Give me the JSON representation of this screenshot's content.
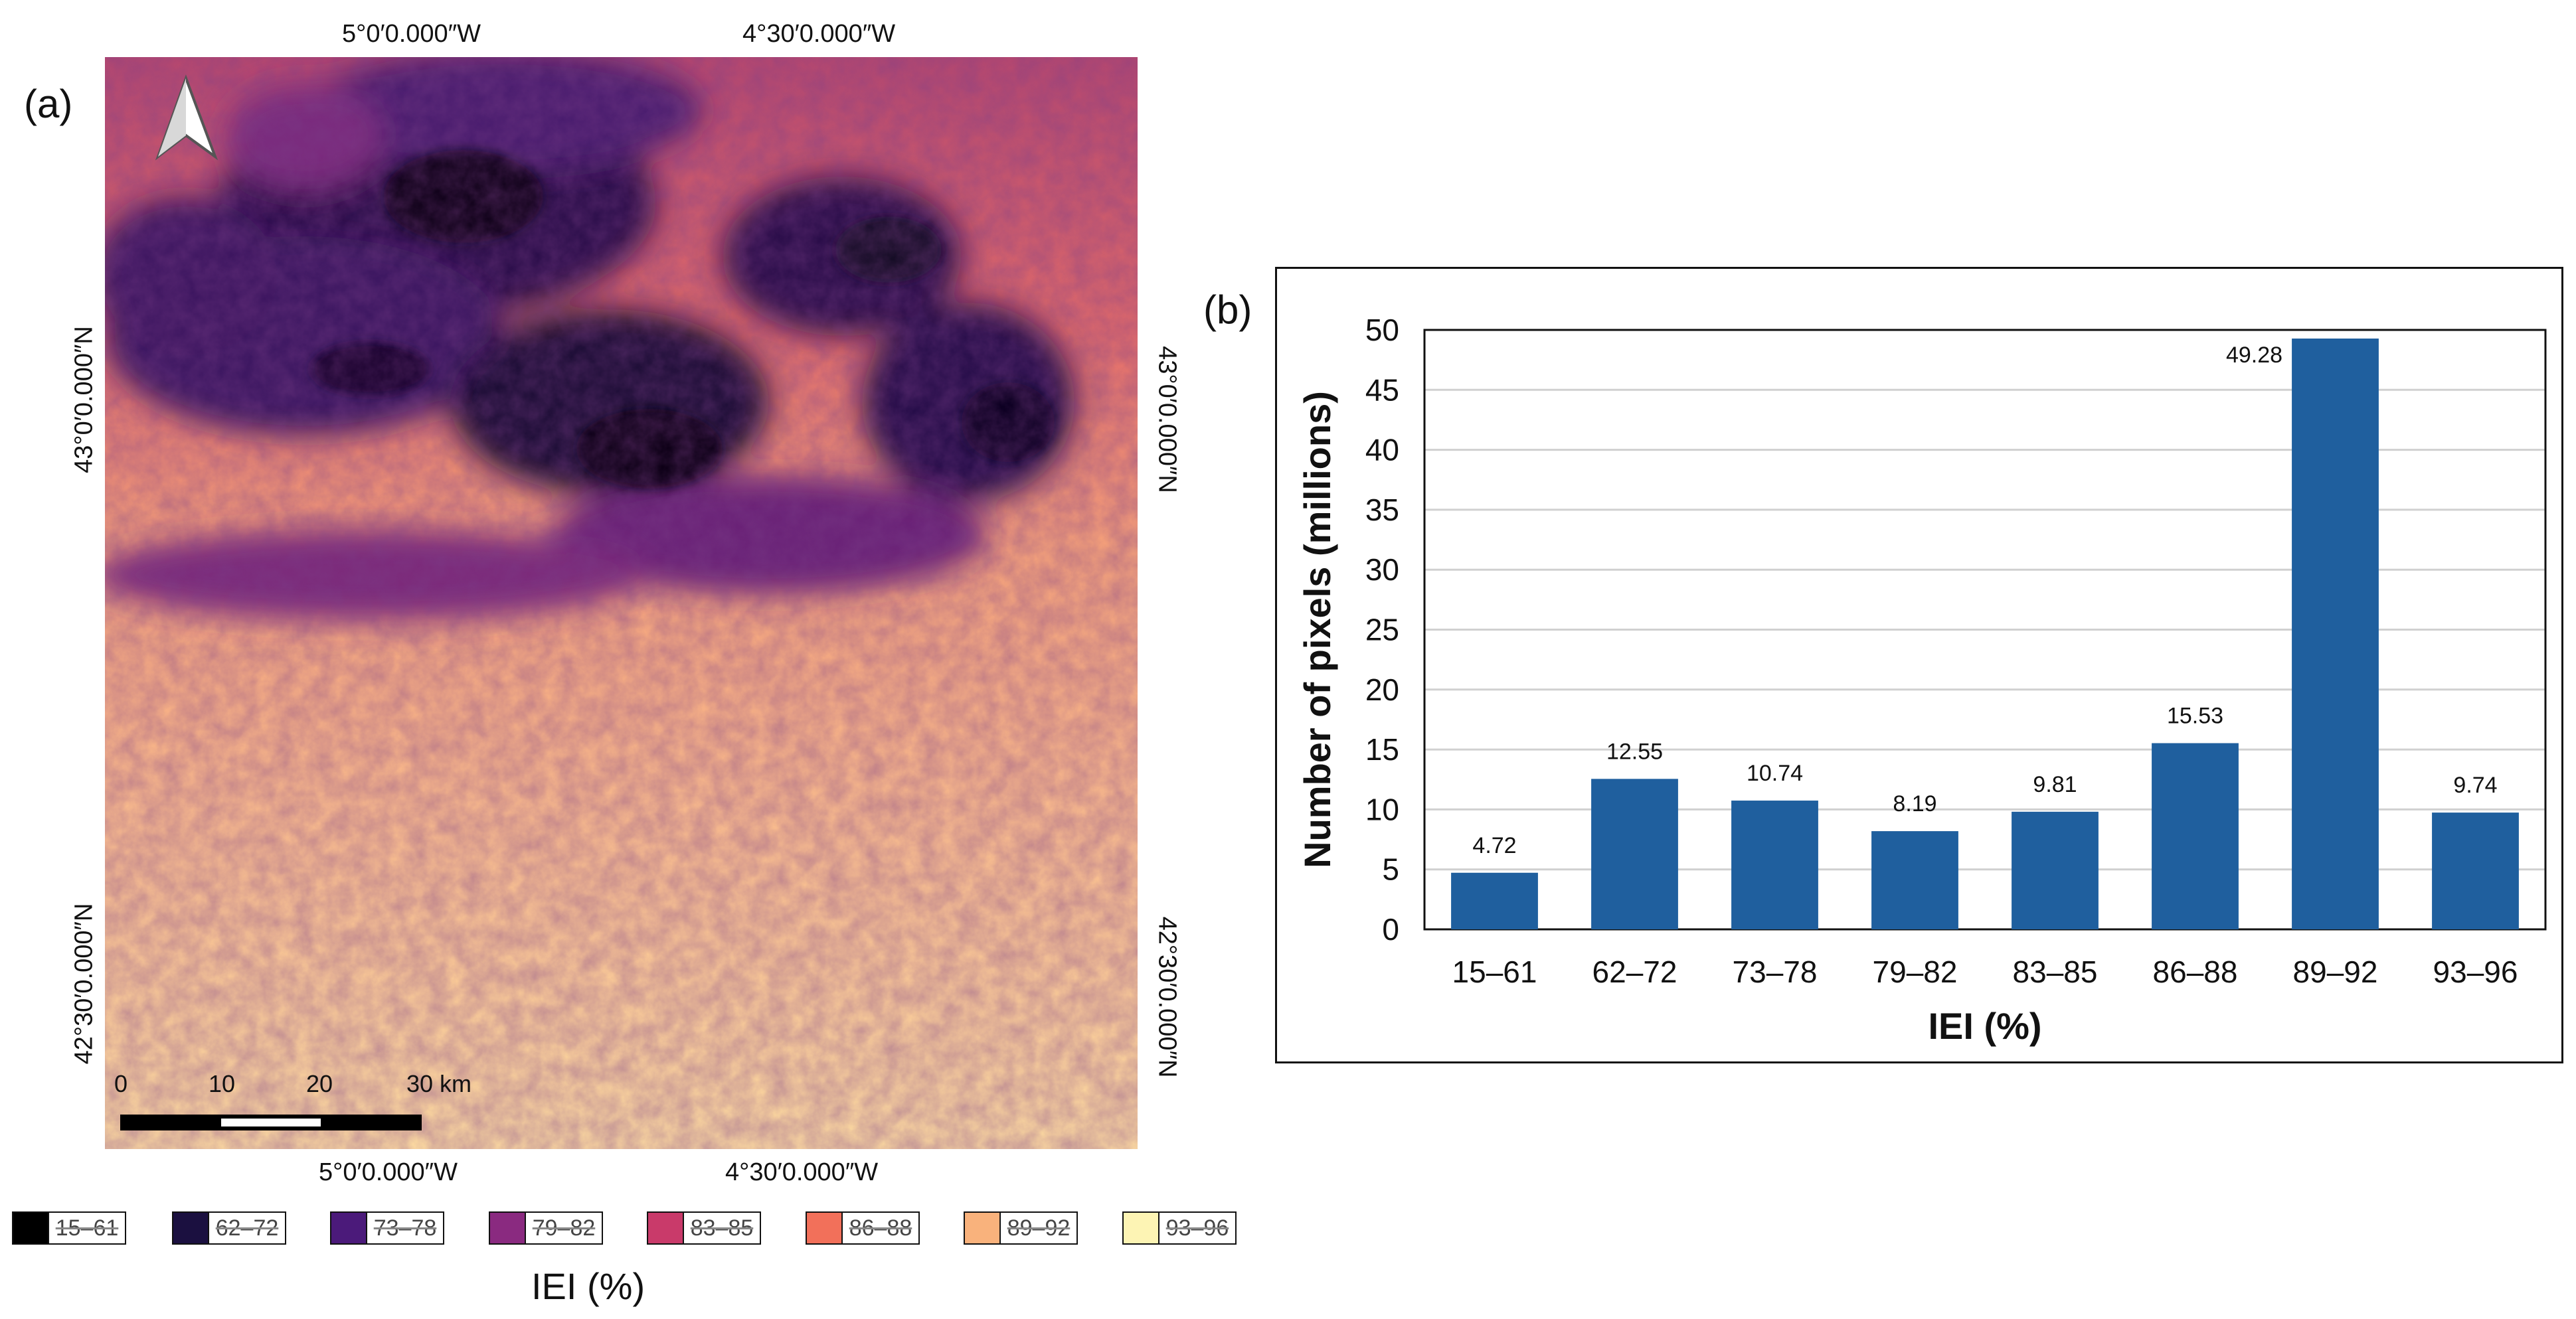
{
  "panels": {
    "a": "(a)",
    "b": "(b)"
  },
  "map": {
    "top_labels": [
      "5°0′0.000″W",
      "4°30′0.000″W"
    ],
    "bottom_labels": [
      "5°0′0.000″W",
      "4°30′0.000″W"
    ],
    "left_labels": [
      "43°0′0.000″N",
      "42°30′0.000″N"
    ],
    "right_labels": [
      "43°0′0.000″N",
      "42°30′0.000″N"
    ],
    "scale_labels": [
      "0",
      "10",
      "20",
      "30 km"
    ],
    "north_arrow_icon": "north-arrow-icon"
  },
  "legend": {
    "title": "IEI (%)",
    "items": [
      {
        "label": "15–61",
        "color": "#000000"
      },
      {
        "label": "62–72",
        "color": "#1b1040"
      },
      {
        "label": "73–78",
        "color": "#4b1a7a"
      },
      {
        "label": "79–82",
        "color": "#8a2a80"
      },
      {
        "label": "83–85",
        "color": "#c93a6a"
      },
      {
        "label": "86–88",
        "color": "#f2705a"
      },
      {
        "label": "89–92",
        "color": "#f9b27c"
      },
      {
        "label": "93–96",
        "color": "#fdf4b4"
      }
    ]
  },
  "chart_data": {
    "type": "bar",
    "categories": [
      "15–61",
      "62–72",
      "73–78",
      "79–82",
      "83–85",
      "86–88",
      "89–92",
      "93–96"
    ],
    "values": [
      4.72,
      12.55,
      10.74,
      8.19,
      9.81,
      15.53,
      49.28,
      9.74
    ],
    "data_labels": [
      "4.72",
      "12.55",
      "10.74",
      "8.19",
      "9.81",
      "15.53",
      "49.28",
      "9.74"
    ],
    "xlabel": "IEI (%)",
    "ylabel": "Number of pixels (millions)",
    "ylim": [
      0,
      50
    ],
    "yticks": [
      "0",
      "5",
      "10",
      "15",
      "20",
      "25",
      "30",
      "35",
      "40",
      "45",
      "50"
    ],
    "grid": true,
    "bar_color": "#1f5f9e"
  }
}
